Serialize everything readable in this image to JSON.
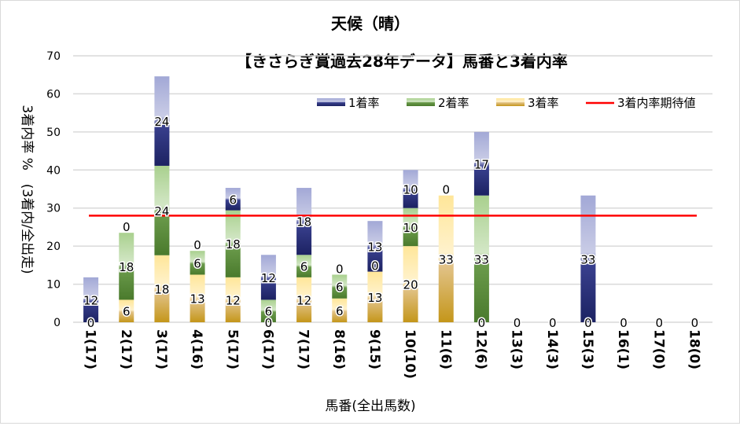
{
  "chart_data": {
    "type": "bar",
    "stacked": true,
    "title": "天候（晴）",
    "subtitle": "【きさらぎ賞過去28年データ】馬番と3着内率",
    "xlabel": "馬番(全出馬数)",
    "ylabel": "3着内率 %　(3着内/全出走)",
    "ylim": [
      0,
      70
    ],
    "yticks": [
      0,
      10,
      20,
      30,
      40,
      50,
      60,
      70
    ],
    "grid": true,
    "legend_position": "top-right",
    "categories": [
      "1(17)",
      "2(17)",
      "3(17)",
      "4(16)",
      "5(17)",
      "6(17)",
      "7(17)",
      "8(16)",
      "9(15)",
      "10(10)",
      "11(6)",
      "12(6)",
      "13(3)",
      "14(3)",
      "15(3)",
      "16(1)",
      "17(0)",
      "18(0)"
    ],
    "series": [
      {
        "name": "3着率",
        "values": [
          0,
          5.9,
          17.6,
          12.5,
          11.8,
          0,
          11.8,
          6.25,
          13.3,
          20,
          33.3,
          0,
          0,
          0,
          0,
          0,
          0,
          0
        ],
        "labels": [
          "0",
          "6",
          "18",
          "13",
          "12",
          "0",
          "12",
          "6",
          "13",
          "20",
          "33",
          "0",
          "0",
          "0",
          "0",
          "0",
          "0",
          "0"
        ]
      },
      {
        "name": "2着率",
        "values": [
          0,
          17.6,
          23.5,
          6.25,
          17.6,
          5.9,
          5.9,
          6.25,
          0,
          10,
          0,
          33.3,
          0,
          0,
          0,
          0,
          0,
          0
        ],
        "labels": [
          "",
          "18",
          "24",
          "6",
          "18",
          "6",
          "6",
          "6",
          "0",
          "10",
          "0",
          "33",
          "",
          "",
          "",
          "",
          "",
          ""
        ]
      },
      {
        "name": "1着率",
        "values": [
          11.8,
          0,
          23.5,
          0,
          5.9,
          11.8,
          17.6,
          0,
          13.3,
          10,
          0,
          16.7,
          0,
          0,
          33.3,
          0,
          0,
          0
        ],
        "labels": [
          "12",
          "0",
          "24",
          "0",
          "6",
          "12",
          "18",
          "0",
          "13",
          "10",
          "",
          "17",
          "",
          "",
          "33",
          "",
          "",
          ""
        ]
      }
    ],
    "reference_line": {
      "name": "3着内率期待値",
      "value": 28,
      "color": "#ff0000"
    },
    "colors": {
      "1着率": "#2e3a87",
      "2着率": "#548235",
      "3着率": "#c99a1c"
    }
  }
}
